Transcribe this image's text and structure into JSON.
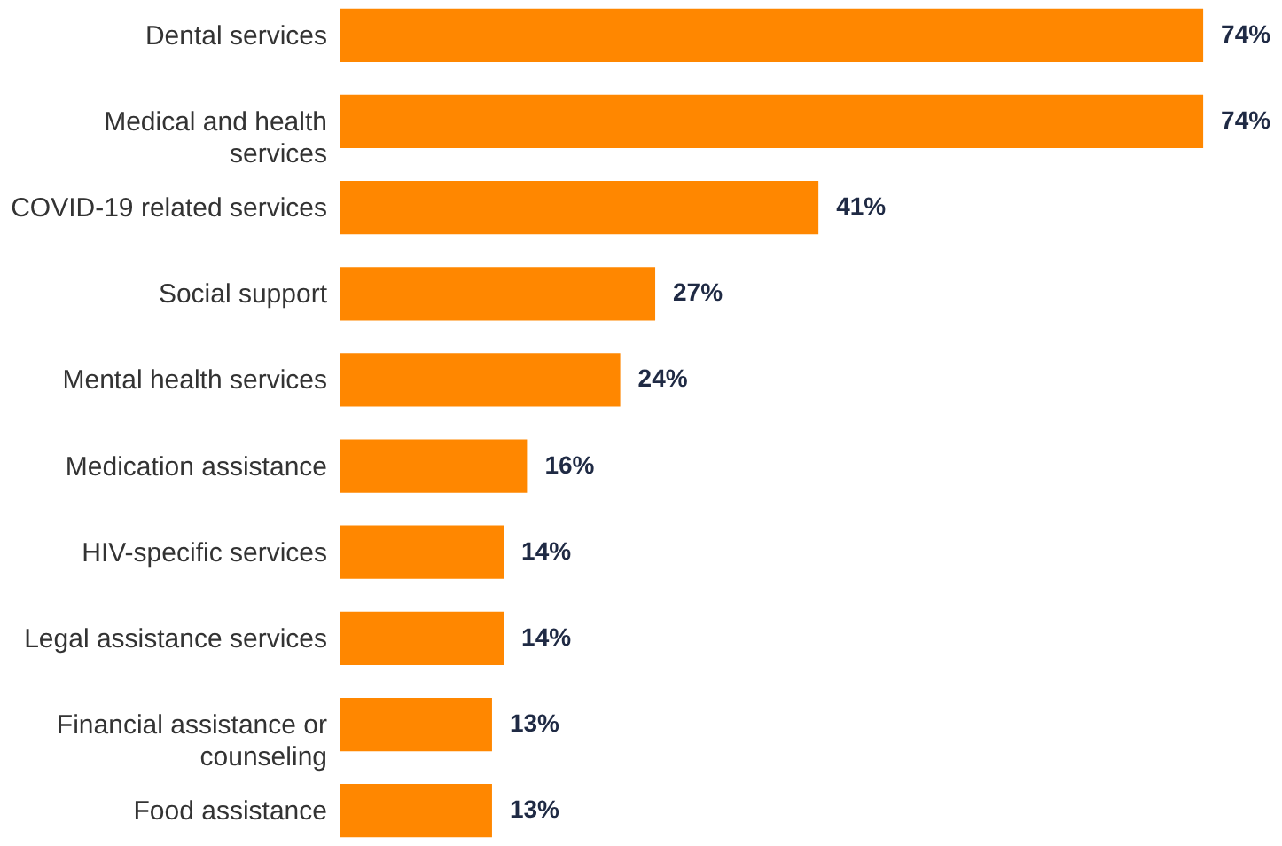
{
  "chart_data": {
    "type": "bar",
    "orientation": "horizontal",
    "tick_labels": "y",
    "categories": [
      "Dental services",
      "Medical and health services",
      "COVID-19 related services",
      "Social support",
      "Mental health services",
      "Medication assistance",
      "HIV-specific services",
      "Legal assistance services",
      "Financial assistance or counseling",
      "Food assistance"
    ],
    "values": [
      74,
      74,
      41,
      27,
      24,
      16,
      14,
      14,
      13,
      13
    ],
    "value_labels": [
      "74%",
      "74%",
      "41%",
      "27%",
      "24%",
      "16%",
      "14%",
      "14%",
      "13%",
      "13%"
    ],
    "color": "#ff8700"
  }
}
